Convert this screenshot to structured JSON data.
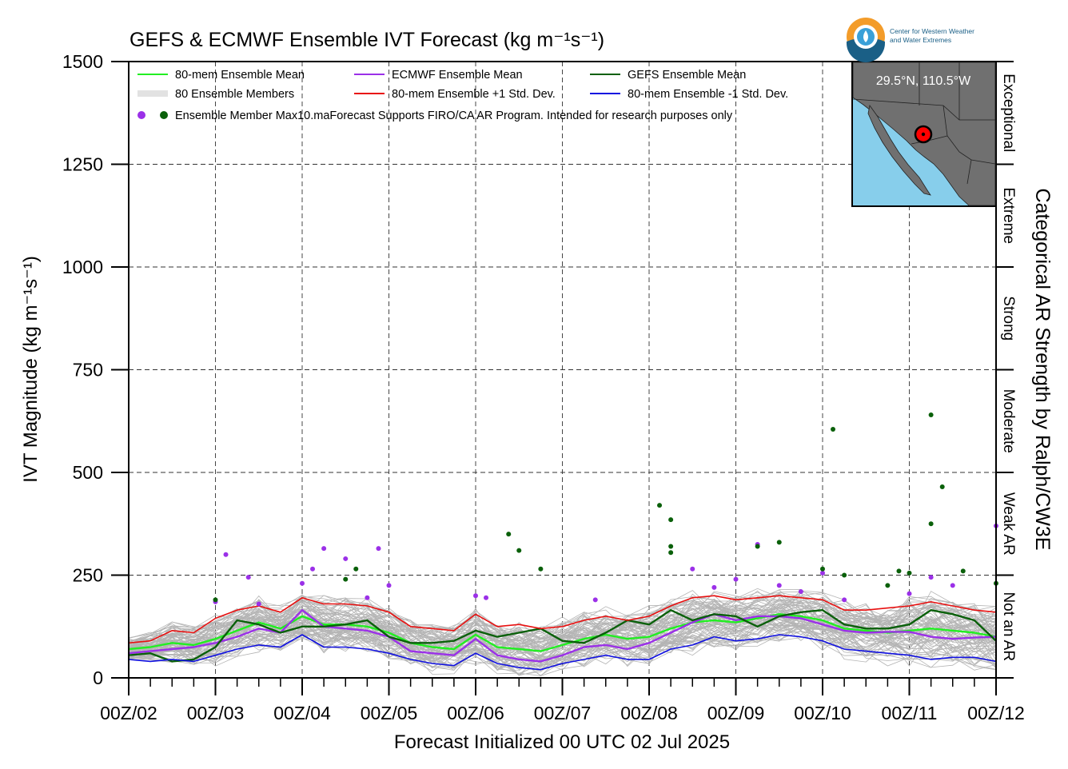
{
  "logo": {
    "line1": "Center for Western Weather",
    "line2": "and Water Extremes"
  },
  "inset": {
    "label": "29.5°N, 110.5°W",
    "ocean_color": "#87ceeb",
    "land_color": "#707070",
    "marker_color": "#ff0000"
  },
  "chart_data": {
    "type": "line",
    "title": "GEFS & ECMWF Ensemble IVT Forecast (kg m⁻¹s⁻¹)",
    "ylabel": "IVT Magnitude (kg m⁻¹s⁻¹)",
    "xlabel": "Forecast Initialized 00 UTC 02 Jul 2025",
    "y2label": "Categorical AR Strength by Ralph/CW3E",
    "ylim": [
      0,
      1500
    ],
    "yticks": [
      "0",
      "250",
      "500",
      "750",
      "1000",
      "1250",
      "1500"
    ],
    "xticks": [
      "00Z/02",
      "00Z/03",
      "00Z/04",
      "00Z/05",
      "00Z/06",
      "00Z/07",
      "00Z/08",
      "00Z/09",
      "00Z/10",
      "00Z/11",
      "00Z/12"
    ],
    "x_day_range": [
      2,
      12
    ],
    "grid": true,
    "legend": {
      "placement": "top-left",
      "entries": [
        {
          "label": "80-mem Ensemble Mean",
          "color": "#22ee22",
          "kind": "line"
        },
        {
          "label": "ECMWF Ensemble Mean",
          "color": "#9b30e8",
          "kind": "line"
        },
        {
          "label": "GEFS Ensemble Mean",
          "color": "#0a600a",
          "kind": "line"
        },
        {
          "label": "80 Ensemble Members",
          "color": "#b0b0b0",
          "kind": "lines"
        },
        {
          "label": "80-mem Ensemble +1 Std. Dev.",
          "color": "#e81010",
          "kind": "line"
        },
        {
          "label": "80-mem Ensemble -1 Std. Dev.",
          "color": "#1010e0",
          "kind": "line"
        },
        {
          "label": "Ensemble Member Max10.maForecast Supports FIRO/CA AR Program. Intended for research purposes only",
          "colors": [
            "#9b30e8",
            "#0a600a"
          ],
          "kind": "dots"
        }
      ]
    },
    "categories": [
      {
        "label": "Not an AR",
        "range": [
          0,
          250
        ]
      },
      {
        "label": "Weak AR",
        "range": [
          250,
          500
        ]
      },
      {
        "label": "Moderate",
        "range": [
          500,
          750
        ]
      },
      {
        "label": "Strong",
        "range": [
          750,
          1000
        ]
      },
      {
        "label": "Extreme",
        "range": [
          1000,
          1250
        ]
      },
      {
        "label": "Exceptional",
        "range": [
          1250,
          1500
        ]
      }
    ],
    "series": [
      {
        "name": "80-mem Ensemble Mean",
        "color": "#22ee22",
        "x": [
          2,
          2.25,
          2.5,
          2.75,
          3,
          3.25,
          3.5,
          3.75,
          4,
          4.25,
          4.5,
          4.75,
          5,
          5.25,
          5.5,
          5.75,
          6,
          6.25,
          6.5,
          6.75,
          7,
          7.25,
          7.5,
          7.75,
          8,
          8.25,
          8.5,
          8.75,
          9,
          9.25,
          9.5,
          9.75,
          10,
          10.25,
          10.5,
          10.75,
          11,
          11.25,
          11.5,
          11.75,
          12
        ],
        "y": [
          70,
          75,
          85,
          80,
          95,
          115,
          135,
          120,
          150,
          130,
          130,
          125,
          110,
          85,
          75,
          70,
          105,
          75,
          70,
          65,
          80,
          95,
          105,
          95,
          100,
          120,
          135,
          140,
          135,
          145,
          155,
          150,
          140,
          120,
          115,
          110,
          115,
          120,
          115,
          110,
          100
        ]
      },
      {
        "name": "ECMWF Ensemble Mean",
        "color": "#9b30e8",
        "x": [
          2,
          2.25,
          2.5,
          2.75,
          3,
          3.25,
          3.5,
          3.75,
          4,
          4.25,
          4.5,
          4.75,
          5,
          5.25,
          5.5,
          5.75,
          6,
          6.25,
          6.5,
          6.75,
          7,
          7.25,
          7.5,
          7.75,
          8,
          8.25,
          8.5,
          8.75,
          9,
          9.25,
          9.5,
          9.75,
          10,
          10.25,
          10.5,
          10.75,
          11,
          11.25,
          11.5,
          11.75,
          12
        ],
        "y": [
          60,
          65,
          70,
          75,
          85,
          100,
          120,
          110,
          165,
          125,
          120,
          115,
          100,
          65,
          60,
          55,
          95,
          55,
          45,
          40,
          55,
          75,
          80,
          70,
          85,
          110,
          135,
          155,
          140,
          150,
          150,
          145,
          130,
          115,
          110,
          112,
          112,
          100,
          95,
          98,
          100
        ]
      },
      {
        "name": "GEFS Ensemble Mean",
        "color": "#0a600a",
        "x": [
          2,
          2.25,
          2.5,
          2.75,
          3,
          3.25,
          3.5,
          3.75,
          4,
          4.25,
          4.5,
          4.75,
          5,
          5.25,
          5.5,
          5.75,
          6,
          6.25,
          6.5,
          6.75,
          7,
          7.25,
          7.5,
          7.75,
          8,
          8.25,
          8.5,
          8.75,
          9,
          9.25,
          9.5,
          9.75,
          10,
          10.25,
          10.5,
          10.75,
          11,
          11.25,
          11.5,
          11.75,
          12
        ],
        "y": [
          55,
          60,
          40,
          45,
          75,
          140,
          130,
          110,
          125,
          125,
          130,
          140,
          100,
          85,
          85,
          90,
          115,
          100,
          110,
          120,
          90,
          85,
          110,
          140,
          130,
          165,
          140,
          155,
          150,
          125,
          150,
          160,
          165,
          130,
          120,
          120,
          130,
          165,
          155,
          140,
          90
        ]
      },
      {
        "name": "80-mem Ensemble +1 Std. Dev.",
        "color": "#e81010",
        "x": [
          2,
          2.25,
          2.5,
          2.75,
          3,
          3.25,
          3.5,
          3.75,
          4,
          4.25,
          4.5,
          4.75,
          5,
          5.25,
          5.5,
          5.75,
          6,
          6.25,
          6.5,
          6.75,
          7,
          7.25,
          7.5,
          7.75,
          8,
          8.25,
          8.5,
          8.75,
          9,
          9.25,
          9.5,
          9.75,
          10,
          10.25,
          10.5,
          10.75,
          11,
          11.25,
          11.5,
          11.75,
          12
        ],
        "y": [
          85,
          90,
          115,
          110,
          145,
          165,
          175,
          160,
          195,
          180,
          180,
          175,
          160,
          125,
          120,
          115,
          155,
          125,
          130,
          120,
          125,
          140,
          150,
          140,
          150,
          175,
          195,
          200,
          190,
          195,
          200,
          195,
          190,
          165,
          165,
          170,
          175,
          185,
          175,
          165,
          160
        ]
      },
      {
        "name": "80-mem Ensemble -1 Std. Dev.",
        "color": "#1010e0",
        "x": [
          2,
          2.25,
          2.5,
          2.75,
          3,
          3.25,
          3.5,
          3.75,
          4,
          4.25,
          4.5,
          4.75,
          5,
          5.25,
          5.5,
          5.75,
          6,
          6.25,
          6.5,
          6.75,
          7,
          7.25,
          7.5,
          7.75,
          8,
          8.25,
          8.5,
          8.75,
          9,
          9.25,
          9.5,
          9.75,
          10,
          10.25,
          10.5,
          10.75,
          11,
          11.25,
          11.5,
          11.75,
          12
        ],
        "y": [
          45,
          40,
          45,
          40,
          55,
          70,
          80,
          75,
          105,
          75,
          75,
          70,
          60,
          45,
          35,
          30,
          60,
          35,
          25,
          20,
          35,
          45,
          55,
          45,
          45,
          70,
          80,
          100,
          90,
          95,
          105,
          100,
          90,
          70,
          65,
          60,
          55,
          45,
          50,
          50,
          40
        ]
      }
    ],
    "member_max_points": {
      "ecmwf": {
        "color": "#9b30e8",
        "x": [
          3,
          3.12,
          3.38,
          3.5,
          4,
          4.12,
          4.25,
          4.5,
          4.75,
          4.88,
          5,
          6,
          6.12,
          7.38,
          8.5,
          8.75,
          9,
          9.25,
          9.5,
          9.75,
          10,
          10.25,
          11,
          11.25,
          11.5,
          12
        ],
        "y": [
          185,
          300,
          245,
          180,
          230,
          265,
          315,
          290,
          195,
          315,
          225,
          200,
          195,
          190,
          265,
          220,
          240,
          325,
          225,
          210,
          255,
          190,
          205,
          245,
          225,
          370
        ]
      },
      "gefs": {
        "color": "#0a600a",
        "x": [
          3,
          4.5,
          4.62,
          6.38,
          6.5,
          6.75,
          8.12,
          8.25,
          8.25,
          8.25,
          9.25,
          9.5,
          10,
          10.12,
          10.25,
          10.75,
          10.88,
          11,
          11.25,
          11.25,
          11.38,
          11.62,
          12
        ],
        "y": [
          190,
          240,
          265,
          350,
          310,
          265,
          420,
          385,
          320,
          305,
          320,
          330,
          265,
          605,
          250,
          225,
          260,
          255,
          640,
          375,
          465,
          260,
          230
        ]
      }
    }
  }
}
